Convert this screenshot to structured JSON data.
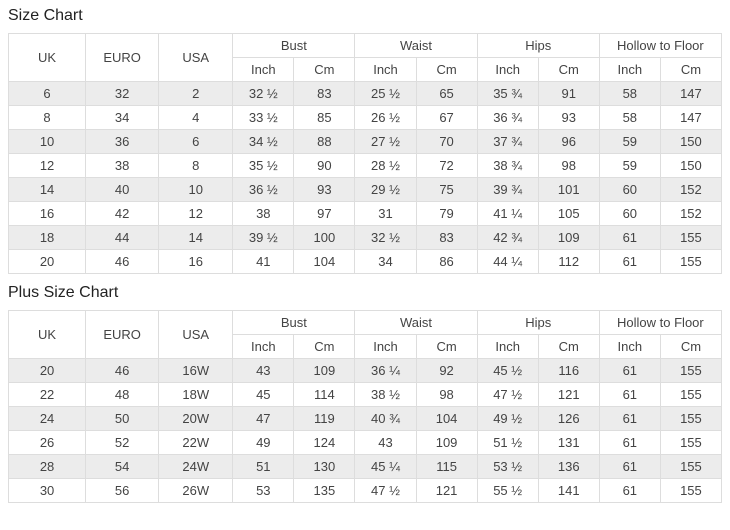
{
  "colors": {
    "background": "#ffffff",
    "stripe_row": "#ececec",
    "border": "#dddddd",
    "cell_text": "#444444",
    "title_text": "#222222"
  },
  "chart_data": [
    {
      "type": "table",
      "title": "Size Chart",
      "base_columns": [
        "UK",
        "EURO",
        "USA"
      ],
      "column_groups": [
        "Bust",
        "Waist",
        "Hips",
        "Hollow to Floor"
      ],
      "sub_columns": [
        "Inch",
        "Cm"
      ],
      "rows": [
        [
          "6",
          "32",
          "2",
          "32 ½",
          "83",
          "25 ½",
          "65",
          "35 ¾",
          "91",
          "58",
          "147"
        ],
        [
          "8",
          "34",
          "4",
          "33 ½",
          "85",
          "26 ½",
          "67",
          "36 ¾",
          "93",
          "58",
          "147"
        ],
        [
          "10",
          "36",
          "6",
          "34 ½",
          "88",
          "27 ½",
          "70",
          "37 ¾",
          "96",
          "59",
          "150"
        ],
        [
          "12",
          "38",
          "8",
          "35 ½",
          "90",
          "28 ½",
          "72",
          "38 ¾",
          "98",
          "59",
          "150"
        ],
        [
          "14",
          "40",
          "10",
          "36 ½",
          "93",
          "29 ½",
          "75",
          "39 ¾",
          "101",
          "60",
          "152"
        ],
        [
          "16",
          "42",
          "12",
          "38",
          "97",
          "31",
          "79",
          "41 ¼",
          "105",
          "60",
          "152"
        ],
        [
          "18",
          "44",
          "14",
          "39 ½",
          "100",
          "32 ½",
          "83",
          "42 ¾",
          "109",
          "61",
          "155"
        ],
        [
          "20",
          "46",
          "16",
          "41",
          "104",
          "34",
          "86",
          "44 ¼",
          "112",
          "61",
          "155"
        ]
      ]
    },
    {
      "type": "table",
      "title": "Plus Size Chart",
      "base_columns": [
        "UK",
        "EURO",
        "USA"
      ],
      "column_groups": [
        "Bust",
        "Waist",
        "Hips",
        "Hollow to Floor"
      ],
      "sub_columns": [
        "Inch",
        "Cm"
      ],
      "rows": [
        [
          "20",
          "46",
          "16W",
          "43",
          "109",
          "36 ¼",
          "92",
          "45 ½",
          "116",
          "61",
          "155"
        ],
        [
          "22",
          "48",
          "18W",
          "45",
          "114",
          "38 ½",
          "98",
          "47 ½",
          "121",
          "61",
          "155"
        ],
        [
          "24",
          "50",
          "20W",
          "47",
          "119",
          "40 ¾",
          "104",
          "49 ½",
          "126",
          "61",
          "155"
        ],
        [
          "26",
          "52",
          "22W",
          "49",
          "124",
          "43",
          "109",
          "51 ½",
          "131",
          "61",
          "155"
        ],
        [
          "28",
          "54",
          "24W",
          "51",
          "130",
          "45 ¼",
          "115",
          "53 ½",
          "136",
          "61",
          "155"
        ],
        [
          "30",
          "56",
          "26W",
          "53",
          "135",
          "47 ½",
          "121",
          "55 ½",
          "141",
          "61",
          "155"
        ]
      ]
    }
  ]
}
